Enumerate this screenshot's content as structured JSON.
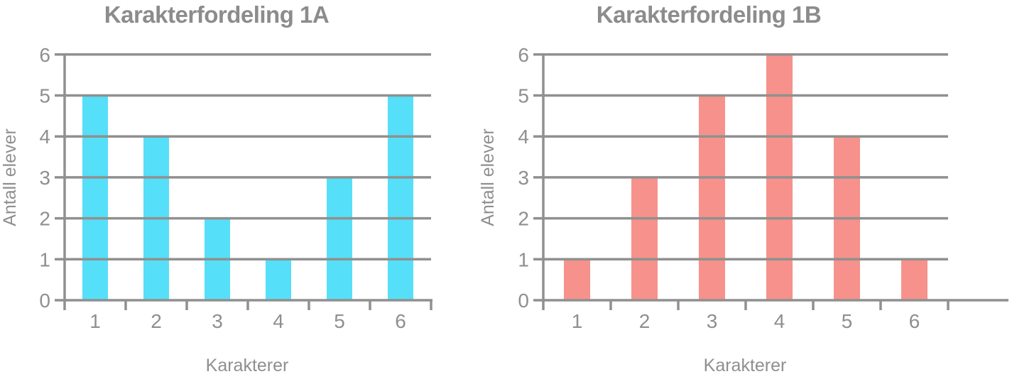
{
  "chart_data": [
    {
      "type": "bar",
      "title": "Karakterfordeling 1A",
      "xlabel": "Karakterer",
      "ylabel": "Antall elever",
      "categories": [
        "1",
        "2",
        "3",
        "4",
        "5",
        "6"
      ],
      "values": [
        5,
        4,
        2,
        1,
        3,
        5
      ],
      "y_ticks": [
        "0",
        "1",
        "2",
        "3",
        "4",
        "5",
        "6"
      ],
      "ylim": [
        0,
        6
      ],
      "grid": true,
      "legend": "none",
      "bar_color": "#55DFF8",
      "line_color": "#909090",
      "text_color": "#8F8F8F",
      "title_color": "#8C8C8C"
    },
    {
      "type": "bar",
      "title": "Karakterfordeling 1B",
      "xlabel": "Karakterer",
      "ylabel": "Antall elever",
      "categories": [
        "1",
        "2",
        "3",
        "4",
        "5",
        "6"
      ],
      "values": [
        1,
        3,
        5,
        6,
        4,
        1
      ],
      "y_ticks": [
        "0",
        "1",
        "2",
        "3",
        "4",
        "5",
        "6"
      ],
      "ylim": [
        0,
        6
      ],
      "grid": true,
      "legend": "none",
      "bar_color": "#F6928B",
      "line_color": "#909090",
      "text_color": "#8F8F8F",
      "title_color": "#8C8C8C"
    }
  ]
}
